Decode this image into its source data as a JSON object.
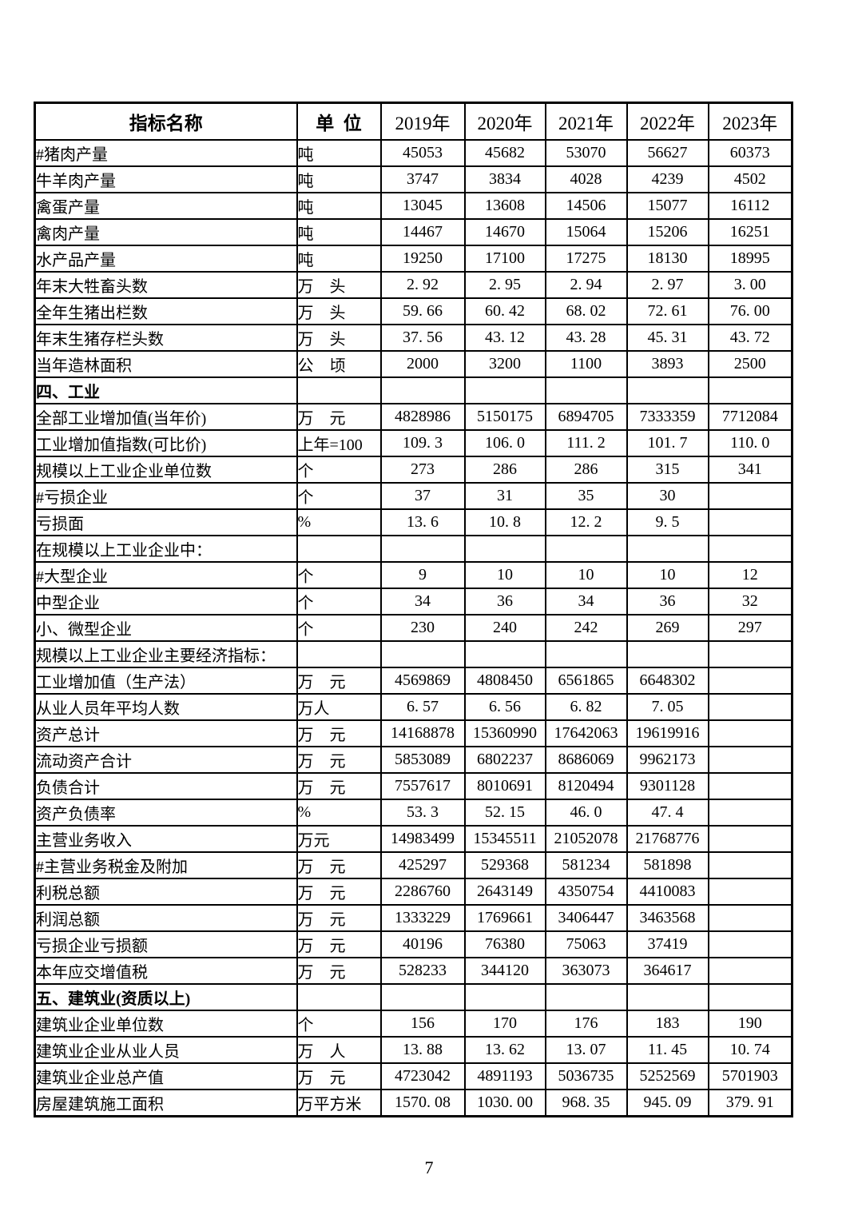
{
  "page": {
    "number": "7"
  },
  "table": {
    "header": {
      "name": "指标名称",
      "unit": "单  位",
      "years": [
        "2019年",
        "2020年",
        "2021年",
        "2022年",
        "2023年"
      ]
    },
    "rows": [
      {
        "name": "#猪肉产量",
        "indent": 2,
        "bold": false,
        "unit": "吨",
        "values": [
          "45053",
          "45682",
          "53070",
          "56627",
          "60373"
        ]
      },
      {
        "name": "牛羊肉产量",
        "indent": 3,
        "bold": false,
        "unit": "吨",
        "values": [
          "3747",
          "3834",
          "4028",
          "4239",
          "4502"
        ]
      },
      {
        "name": "禽蛋产量",
        "indent": 0,
        "bold": false,
        "unit": "吨",
        "values": [
          "13045",
          "13608",
          "14506",
          "15077",
          "16112"
        ]
      },
      {
        "name": "禽肉产量",
        "indent": 0,
        "bold": false,
        "unit": "吨",
        "values": [
          "14467",
          "14670",
          "15064",
          "15206",
          "16251"
        ]
      },
      {
        "name": "水产品产量",
        "indent": 0,
        "bold": false,
        "unit": "吨",
        "values": [
          "19250",
          "17100",
          "17275",
          "18130",
          "18995"
        ]
      },
      {
        "name": "年末大牲畜头数",
        "indent": 0,
        "bold": false,
        "unit": "万    头",
        "values": [
          "2. 92",
          "2. 95",
          "2. 94",
          "2. 97",
          "3. 00"
        ]
      },
      {
        "name": "全年生猪出栏数",
        "indent": 0,
        "bold": false,
        "unit": "万    头",
        "values": [
          "59. 66",
          "60. 42",
          "68. 02",
          "72. 61",
          "76. 00"
        ]
      },
      {
        "name": "年末生猪存栏头数",
        "indent": 0,
        "bold": false,
        "unit": "万    头",
        "values": [
          "37. 56",
          "43. 12",
          "43. 28",
          "45. 31",
          "43. 72"
        ]
      },
      {
        "name": "当年造林面积",
        "indent": 0,
        "bold": false,
        "unit": "公    顷",
        "values": [
          "2000",
          "3200",
          "1100",
          "3893",
          "2500"
        ]
      },
      {
        "name": "四、工业",
        "indent": 0,
        "bold": true,
        "unit": "",
        "values": [
          "",
          "",
          "",
          "",
          ""
        ]
      },
      {
        "name": "全部工业增加值(当年价)",
        "indent": 0,
        "bold": false,
        "unit": "万    元",
        "values": [
          "4828986",
          "5150175",
          "6894705",
          "7333359",
          "7712084"
        ]
      },
      {
        "name": "工业增加值指数(可比价)",
        "indent": 0,
        "bold": false,
        "unit": "上年=100",
        "values": [
          "109. 3",
          "106. 0",
          "111. 2",
          "101. 7",
          "110. 0"
        ]
      },
      {
        "name": "规模以上工业企业单位数",
        "indent": 0,
        "bold": false,
        "unit": "个",
        "values": [
          "273",
          "286",
          "286",
          "315",
          "341"
        ]
      },
      {
        "name": "#亏损企业",
        "indent": 0,
        "bold": false,
        "unit": "个",
        "values": [
          "37",
          "31",
          "35",
          "30",
          ""
        ]
      },
      {
        "name": "亏损面",
        "indent": 3,
        "bold": false,
        "unit": "%",
        "values": [
          "13. 6",
          "10. 8",
          "12. 2",
          "9. 5",
          ""
        ]
      },
      {
        "name": "在规模以上工业企业中：",
        "indent": 0,
        "bold": false,
        "unit": "",
        "values": [
          "",
          "",
          "",
          "",
          ""
        ]
      },
      {
        "name": "#大型企业",
        "indent": 0,
        "bold": false,
        "unit": "个",
        "values": [
          "9",
          "10",
          "10",
          "10",
          "12"
        ]
      },
      {
        "name": "中型企业",
        "indent": 0,
        "bold": false,
        "unit": "个",
        "values": [
          "34",
          "36",
          "34",
          "36",
          "32"
        ]
      },
      {
        "name": "小、微型企业",
        "indent": 0,
        "bold": false,
        "unit": "个",
        "values": [
          "230",
          "240",
          "242",
          "269",
          "297"
        ]
      },
      {
        "name": "规模以上工业企业主要经济指标：",
        "indent": 1,
        "bold": false,
        "unit": "",
        "values": [
          "",
          "",
          "",
          "",
          ""
        ]
      },
      {
        "name": "工业增加值（生产法）",
        "indent": 0,
        "bold": false,
        "unit": "万    元",
        "values": [
          "4569869",
          "4808450",
          "6561865",
          "6648302",
          ""
        ]
      },
      {
        "name": "从业人员年平均人数",
        "indent": 0,
        "bold": false,
        "unit": "万人",
        "values": [
          "6. 57",
          "6. 56",
          "6. 82",
          "7. 05",
          ""
        ]
      },
      {
        "name": "资产总计",
        "indent": 0,
        "bold": false,
        "unit": "万    元",
        "values": [
          "14168878",
          "15360990",
          "17642063",
          "19619916",
          ""
        ]
      },
      {
        "name": "流动资产合计",
        "indent": 0,
        "bold": false,
        "unit": "万    元",
        "values": [
          "5853089",
          "6802237",
          "8686069",
          "9962173",
          ""
        ]
      },
      {
        "name": "负债合计",
        "indent": 0,
        "bold": false,
        "unit": "万    元",
        "values": [
          "7557617",
          "8010691",
          "8120494",
          "9301128",
          ""
        ]
      },
      {
        "name": "资产负债率",
        "indent": 0,
        "bold": false,
        "unit": "%",
        "values": [
          "53. 3",
          "52. 15",
          "46. 0",
          "47. 4",
          ""
        ]
      },
      {
        "name": "主营业务收入",
        "indent": 0,
        "bold": false,
        "unit": "万元",
        "values": [
          "14983499",
          "15345511",
          "21052078",
          "21768776",
          ""
        ]
      },
      {
        "name": "#主营业务税金及附加",
        "indent": 2,
        "bold": false,
        "unit": "万    元",
        "values": [
          "425297",
          "529368",
          "581234",
          "581898",
          ""
        ]
      },
      {
        "name": "利税总额",
        "indent": 0,
        "bold": false,
        "unit": "万    元",
        "values": [
          "2286760",
          "2643149",
          "4350754",
          "4410083",
          ""
        ]
      },
      {
        "name": "利润总额",
        "indent": 0,
        "bold": false,
        "unit": "万    元",
        "values": [
          "1333229",
          "1769661",
          "3406447",
          "3463568",
          ""
        ]
      },
      {
        "name": "亏损企业亏损额",
        "indent": 0,
        "bold": false,
        "unit": "万    元",
        "values": [
          "40196",
          "76380",
          "75063",
          "37419",
          ""
        ]
      },
      {
        "name": "本年应交增值税",
        "indent": 0,
        "bold": false,
        "unit": "万    元",
        "values": [
          "528233",
          "344120",
          "363073",
          "364617",
          ""
        ]
      },
      {
        "name": "五、建筑业(资质以上)",
        "indent": 0,
        "bold": true,
        "unit": "",
        "values": [
          "",
          "",
          "",
          "",
          ""
        ]
      },
      {
        "name": "建筑业企业单位数",
        "indent": 0,
        "bold": false,
        "unit": "个",
        "values": [
          "156",
          "170",
          "176",
          "183",
          "190"
        ]
      },
      {
        "name": "建筑业企业从业人员",
        "indent": 0,
        "bold": false,
        "unit": "万    人",
        "values": [
          "13. 88",
          "13. 62",
          "13. 07",
          "11. 45",
          "10. 74"
        ]
      },
      {
        "name": "建筑业企业总产值",
        "indent": 0,
        "bold": false,
        "unit": "万    元",
        "values": [
          "4723042",
          "4891193",
          "5036735",
          "5252569",
          "5701903"
        ]
      },
      {
        "name": "房屋建筑施工面积",
        "indent": 0,
        "bold": false,
        "unit": "万平方米",
        "values": [
          "1570. 08",
          "1030. 00",
          "968. 35",
          "945. 09",
          "379. 91"
        ]
      }
    ]
  }
}
